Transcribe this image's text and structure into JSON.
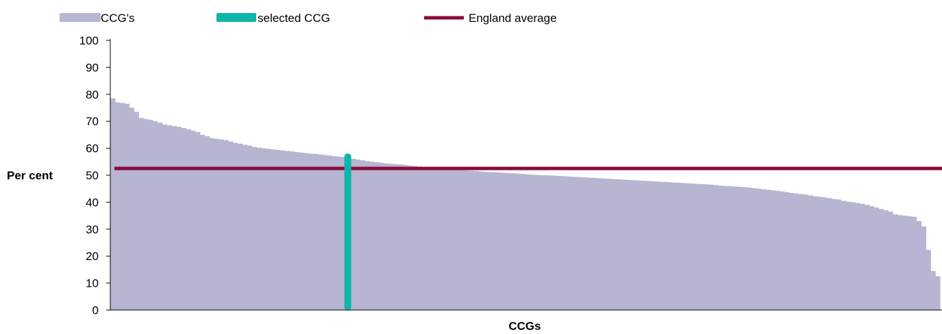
{
  "chart_data": {
    "type": "bar",
    "title": "",
    "xlabel": "CCGs",
    "ylabel": "Per cent",
    "ylim": [
      0,
      100
    ],
    "yticks": [
      0,
      10,
      20,
      30,
      40,
      50,
      60,
      70,
      80,
      90,
      100
    ],
    "grid": false,
    "legend_position": "top",
    "legend": [
      {
        "label": "CCG's",
        "kind": "bar",
        "color": "#b6b6d2"
      },
      {
        "label": "selected CCG",
        "kind": "bar",
        "color": "#10b4a8"
      },
      {
        "label": "England average",
        "kind": "line",
        "color": "#8c0a3c"
      }
    ],
    "series": [
      {
        "name": "CCG's",
        "color": "#b6b6d2",
        "values": [
          78.5,
          77,
          76.8,
          76.5,
          75,
          73.5,
          71.2,
          70.8,
          70.5,
          70,
          69.5,
          68.8,
          68.5,
          68.2,
          68,
          67.5,
          67,
          66.5,
          66,
          65,
          64.5,
          63.7,
          63.5,
          63.3,
          63,
          62.5,
          62,
          61.7,
          61.3,
          61,
          60.5,
          60.2,
          60,
          59.8,
          59.6,
          59.4,
          59.2,
          59,
          58.8,
          58.6,
          58.4,
          58.2,
          58,
          57.9,
          57.7,
          57.5,
          57.3,
          57.1,
          56.9,
          56.7,
          56.4,
          56.1,
          55.8,
          55.5,
          55.2,
          55,
          54.8,
          54.6,
          54.4,
          54.2,
          54.1,
          54,
          53.8,
          53.6,
          53.4,
          53.2,
          53,
          52.9,
          52.7,
          52.5,
          52.3,
          52.2,
          52.1,
          52,
          51.9,
          51.8,
          51.7,
          51.6,
          51.4,
          51.3,
          51.2,
          51.1,
          51,
          50.9,
          50.8,
          50.7,
          50.6,
          50.5,
          50.3,
          50.2,
          50.1,
          50,
          50,
          49.9,
          49.8,
          49.7,
          49.6,
          49.5,
          49.4,
          49.3,
          49.2,
          49.1,
          49,
          48.9,
          48.8,
          48.7,
          48.6,
          48.5,
          48.4,
          48.3,
          48.2,
          48.1,
          48,
          47.9,
          47.8,
          47.7,
          47.6,
          47.5,
          47.4,
          47.3,
          47.2,
          47.1,
          47,
          46.9,
          46.8,
          46.7,
          46.6,
          46.5,
          46.3,
          46.1,
          46,
          45.9,
          45.8,
          45.7,
          45.6,
          45.4,
          45.2,
          45,
          44.8,
          44.6,
          44.4,
          44.2,
          44,
          43.7,
          43.4,
          43.2,
          43,
          42.8,
          42.5,
          42.2,
          42,
          41.8,
          41.5,
          41.2,
          41,
          40.5,
          40.2,
          40,
          39.7,
          39.4,
          39,
          38.5,
          38,
          37.5,
          37,
          36.5,
          35.5,
          35.2,
          35,
          34.8,
          34.6,
          33,
          31,
          22.3,
          14.5,
          12.5
        ]
      }
    ],
    "selected": {
      "name": "selected CCG",
      "index": 40,
      "value": 58,
      "color": "#10b4a8"
    },
    "reference_line": {
      "name": "England average",
      "value": 52.5,
      "color": "#8c0a3c"
    }
  }
}
